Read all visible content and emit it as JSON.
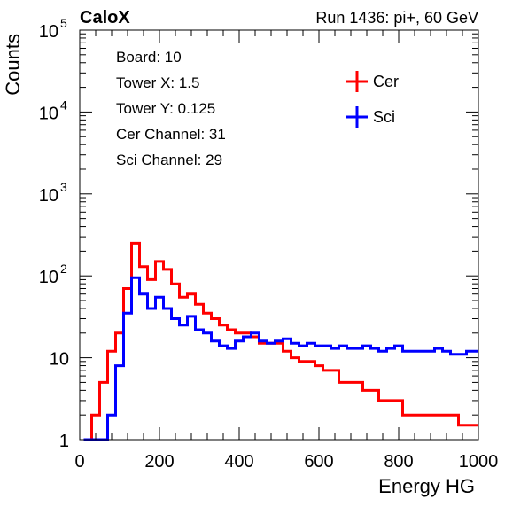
{
  "header": {
    "left": "CaloX",
    "right": "Run 1436: pi+, 60 GeV"
  },
  "info": {
    "lines": [
      "Board: 10",
      "Tower X: 1.5",
      "Tower Y: 0.125",
      "Cer Channel: 31",
      "Sci Channel: 29"
    ]
  },
  "chart_data": {
    "type": "line",
    "title": "",
    "xlabel": "Energy HG",
    "ylabel": "Counts",
    "xlim": [
      0,
      1000
    ],
    "ylim": [
      1,
      100000
    ],
    "yscale": "log",
    "legend_position": "top-right",
    "x_ticks": [
      0,
      200,
      400,
      600,
      800,
      1000
    ],
    "y_ticks": [
      {
        "value": 1,
        "base": "1",
        "exp": ""
      },
      {
        "value": 10,
        "base": "10",
        "exp": ""
      },
      {
        "value": 100,
        "base": "10",
        "exp": "2"
      },
      {
        "value": 1000,
        "base": "10",
        "exp": "3"
      },
      {
        "value": 10000,
        "base": "10",
        "exp": "4"
      },
      {
        "value": 100000,
        "base": "10",
        "exp": "5"
      }
    ],
    "series": [
      {
        "name": "Cer",
        "color": "#ff0000",
        "x": [
          20,
          40,
          60,
          80,
          100,
          120,
          140,
          160,
          180,
          200,
          220,
          240,
          260,
          280,
          300,
          320,
          340,
          360,
          380,
          400,
          420,
          440,
          460,
          480,
          500,
          520,
          540,
          560,
          580,
          600,
          620,
          640,
          660,
          680,
          700,
          720,
          740,
          760,
          780,
          800,
          820,
          840,
          860,
          880,
          900,
          920,
          940,
          960,
          980,
          1000
        ],
        "values": [
          1,
          2,
          5,
          12,
          20,
          70,
          250,
          130,
          90,
          150,
          120,
          80,
          55,
          60,
          45,
          35,
          30,
          25,
          22,
          20,
          20,
          18,
          15,
          15,
          15,
          12,
          10,
          9,
          9,
          8,
          7,
          7,
          5,
          5,
          5,
          4,
          4,
          3,
          3,
          3,
          2,
          2,
          2,
          2,
          2,
          2,
          2,
          1.5,
          1.5,
          1.5
        ]
      },
      {
        "name": "Sci",
        "color": "#0000ff",
        "x": [
          20,
          40,
          60,
          80,
          100,
          120,
          140,
          160,
          180,
          200,
          220,
          240,
          260,
          280,
          300,
          320,
          340,
          360,
          380,
          400,
          420,
          440,
          460,
          480,
          500,
          520,
          540,
          560,
          580,
          600,
          620,
          640,
          660,
          680,
          700,
          720,
          740,
          760,
          780,
          800,
          820,
          840,
          860,
          880,
          900,
          920,
          940,
          960,
          980,
          1000
        ],
        "values": [
          1,
          1,
          1,
          2,
          8,
          35,
          95,
          60,
          40,
          55,
          40,
          30,
          25,
          32,
          22,
          20,
          16,
          14,
          13,
          16,
          18,
          20,
          16,
          15,
          16,
          17,
          15,
          14,
          15,
          14,
          14,
          13,
          14,
          13,
          13,
          14,
          13,
          12,
          13,
          14,
          12,
          12,
          12,
          12,
          13,
          12,
          11,
          11,
          12,
          12
        ]
      }
    ]
  }
}
